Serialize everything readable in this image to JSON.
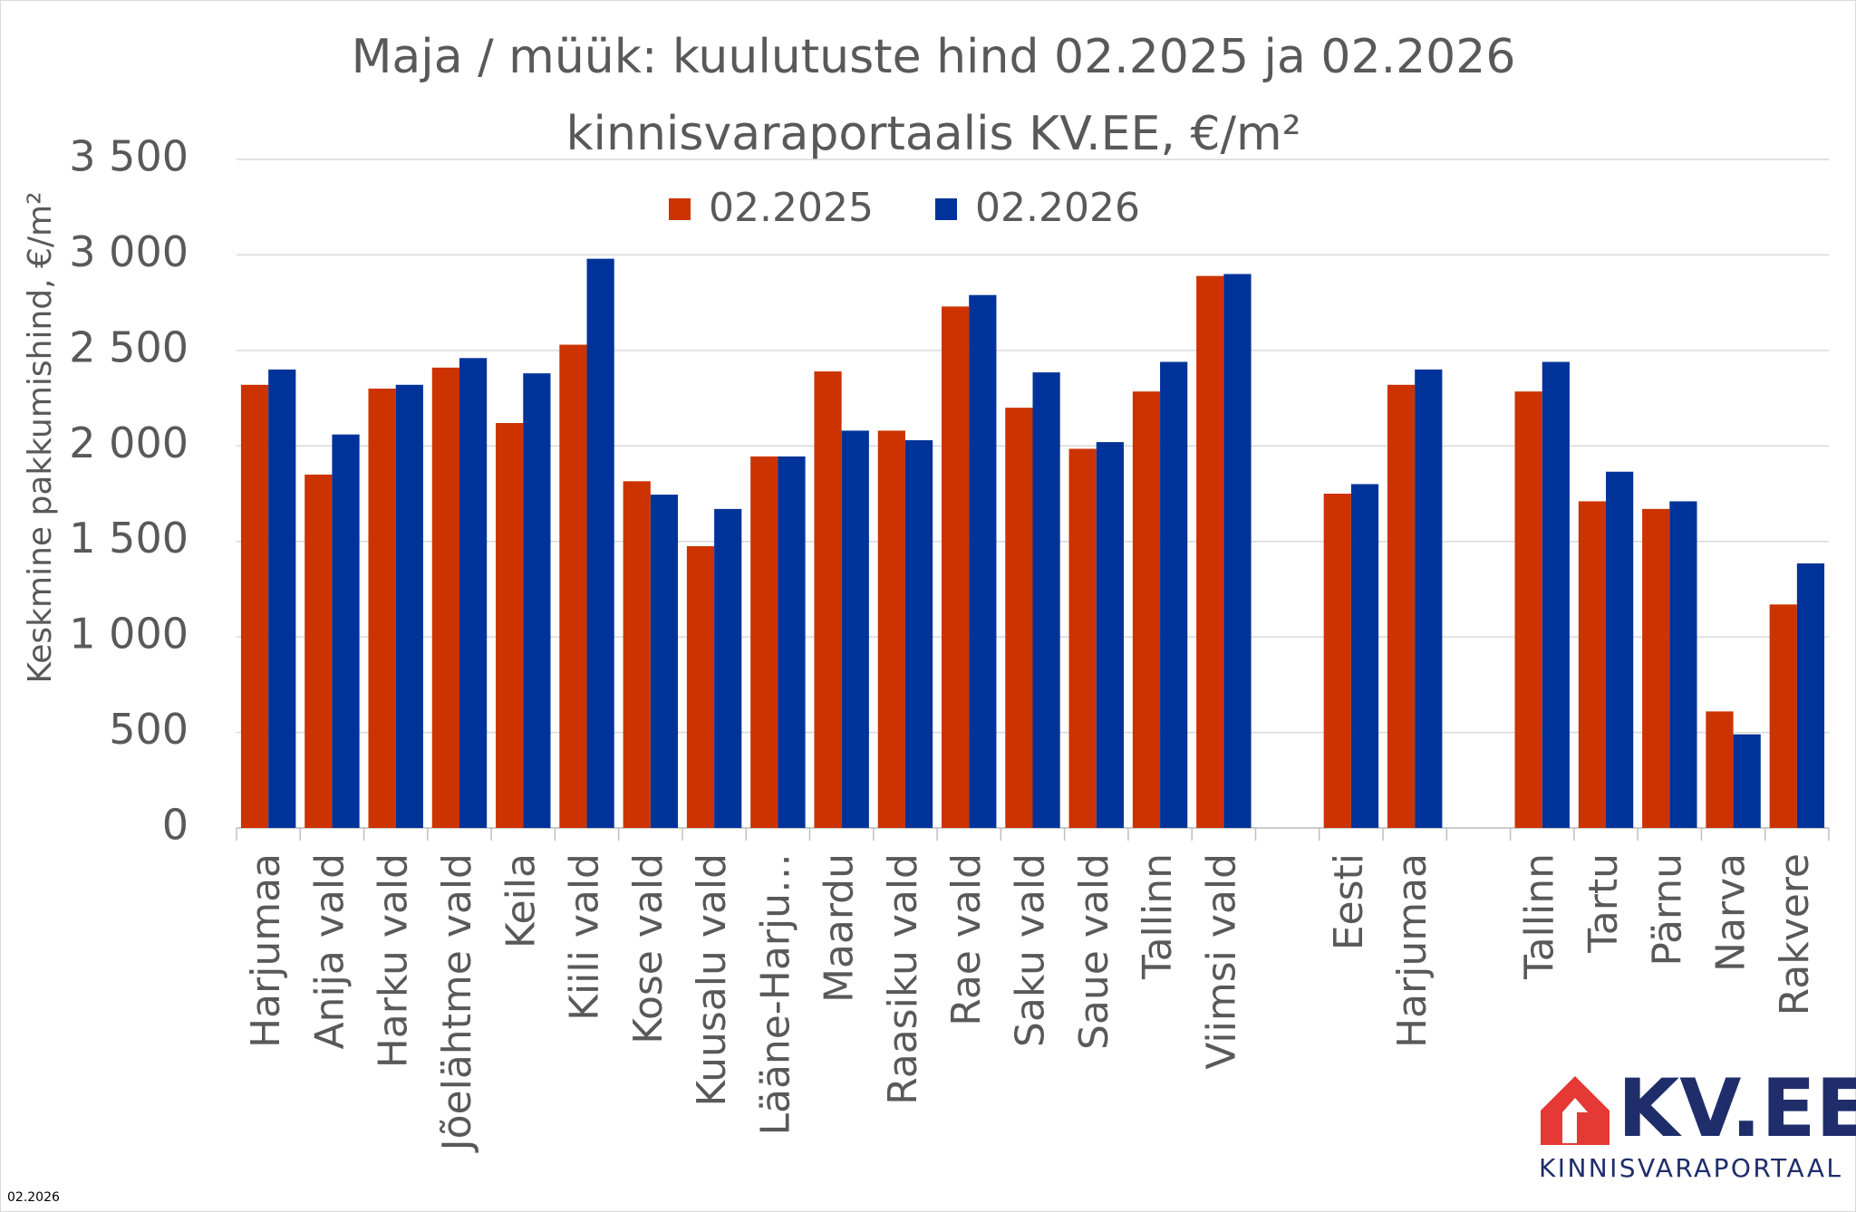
{
  "chart_data": {
    "type": "bar",
    "title": [
      "Maja / müük: kuulutuste hind 02.2025 ja 02.2026",
      "kinnisvaraportaalis KV.EE, €/m²"
    ],
    "y_label": "Keskmine pakkumishind, €/m²",
    "categories": [
      "Harjumaa",
      "Anija vald",
      "Harku vald",
      "Jõelähtme vald",
      "Keila",
      "Kiili vald",
      "Kose vald",
      "Kuusalu vald",
      "Lääne-Harju…",
      "Maardu",
      "Raasiku vald",
      "Rae vald",
      "Saku vald",
      "Saue vald",
      "Tallinn",
      "Viimsi vald",
      null,
      "Eesti",
      "Harjumaa",
      null,
      "Tallinn",
      "Tartu",
      "Pärnu",
      "Narva",
      "Rakvere"
    ],
    "series": [
      {
        "name": "02.2025",
        "color": "#cc3300",
        "values": [
          2320,
          1850,
          2300,
          2410,
          2120,
          2530,
          1815,
          1475,
          1945,
          2390,
          2080,
          2730,
          2200,
          1985,
          2285,
          2890,
          null,
          1750,
          2320,
          null,
          2285,
          1710,
          1670,
          610,
          1170
        ]
      },
      {
        "name": "02.2026",
        "color": "#003399",
        "values": [
          2400,
          2060,
          2320,
          2460,
          2380,
          2980,
          1745,
          1670,
          1945,
          2080,
          2030,
          2790,
          2385,
          2020,
          2440,
          2900,
          null,
          1800,
          2400,
          null,
          2440,
          1865,
          1710,
          490,
          1385
        ]
      }
    ],
    "ylim": [
      0,
      3500
    ],
    "yticks": [
      0,
      500,
      {
        "value": 1000,
        "label": "1 000"
      },
      {
        "value": 1500,
        "label": "1 500"
      },
      {
        "value": 2000,
        "label": "2 000"
      },
      {
        "value": 2500,
        "label": "2 500"
      },
      {
        "value": 3000,
        "label": "3 000"
      },
      {
        "value": 3500,
        "label": "3 500"
      }
    ],
    "grid": true,
    "legend": "top",
    "footnote": "02.2026",
    "logo": {
      "name": "KV.EE",
      "tagline": "KINNISVARAPORTAAL"
    }
  }
}
